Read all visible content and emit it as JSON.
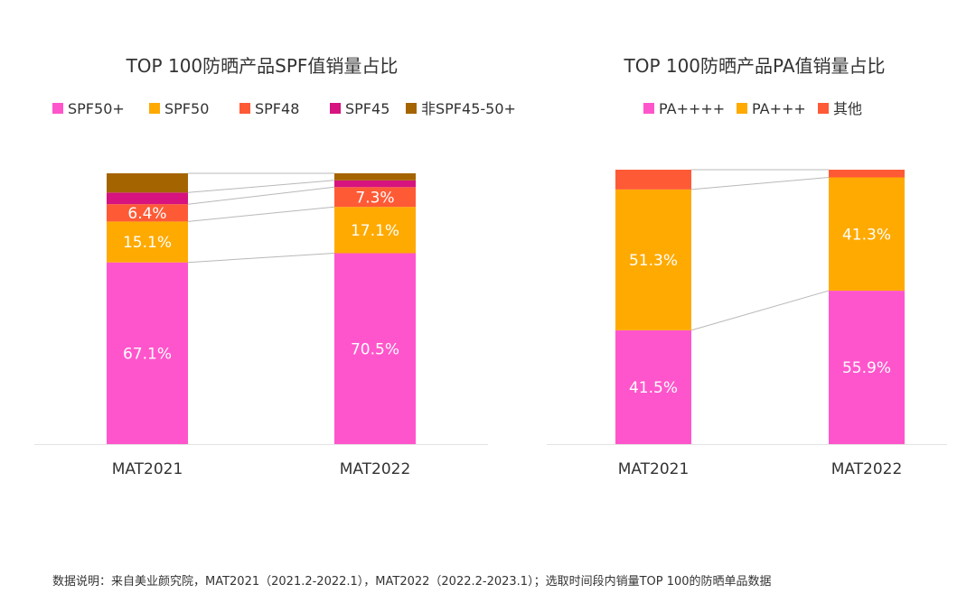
{
  "chart_data": [
    {
      "type": "bar",
      "stacked": true,
      "normalized": true,
      "title": "TOP 100防晒产品SPF值销量占比",
      "categories": [
        "MAT2021",
        "MAT2022"
      ],
      "series": [
        {
          "name": "SPF50+",
          "color": "#FF55CC",
          "values": [
            67.1,
            70.5
          ],
          "labels": [
            "67.1%",
            "70.5%"
          ]
        },
        {
          "name": "SPF50",
          "color": "#FFAA00",
          "values": [
            15.1,
            17.1
          ],
          "labels": [
            "15.1%",
            "17.1%"
          ]
        },
        {
          "name": "SPF48",
          "color": "#FF5A36",
          "values": [
            6.4,
            7.3
          ],
          "labels": [
            "6.4%",
            "7.3%"
          ]
        },
        {
          "name": "SPF45",
          "color": "#D6137E",
          "values": [
            4.3,
            2.5
          ],
          "labels": [
            "",
            ""
          ]
        },
        {
          "name": "非SPF45-50+",
          "color": "#A46400",
          "values": [
            7.1,
            2.6
          ],
          "labels": [
            "",
            ""
          ]
        }
      ],
      "legend": "top",
      "connector_lines": true
    },
    {
      "type": "bar",
      "stacked": true,
      "normalized": true,
      "title": "TOP 100防晒产品PA值销量占比",
      "categories": [
        "MAT2021",
        "MAT2022"
      ],
      "series": [
        {
          "name": "PA++++",
          "color": "#FF55CC",
          "values": [
            41.5,
            55.9
          ],
          "labels": [
            "41.5%",
            "55.9%"
          ]
        },
        {
          "name": "PA+++",
          "color": "#FFAA00",
          "values": [
            51.3,
            41.3
          ],
          "labels": [
            "51.3%",
            "41.3%"
          ]
        },
        {
          "name": "其他",
          "color": "#FF5A36",
          "values": [
            7.2,
            2.8
          ],
          "labels": [
            "",
            ""
          ]
        }
      ],
      "legend": "top",
      "connector_lines": true
    }
  ],
  "footnote": "数据说明：来自美业颜究院，MAT2021（2021.2-2022.1），MAT2022（2022.2-2023.1）；选取时间段内销量TOP 100的防晒单品数据"
}
